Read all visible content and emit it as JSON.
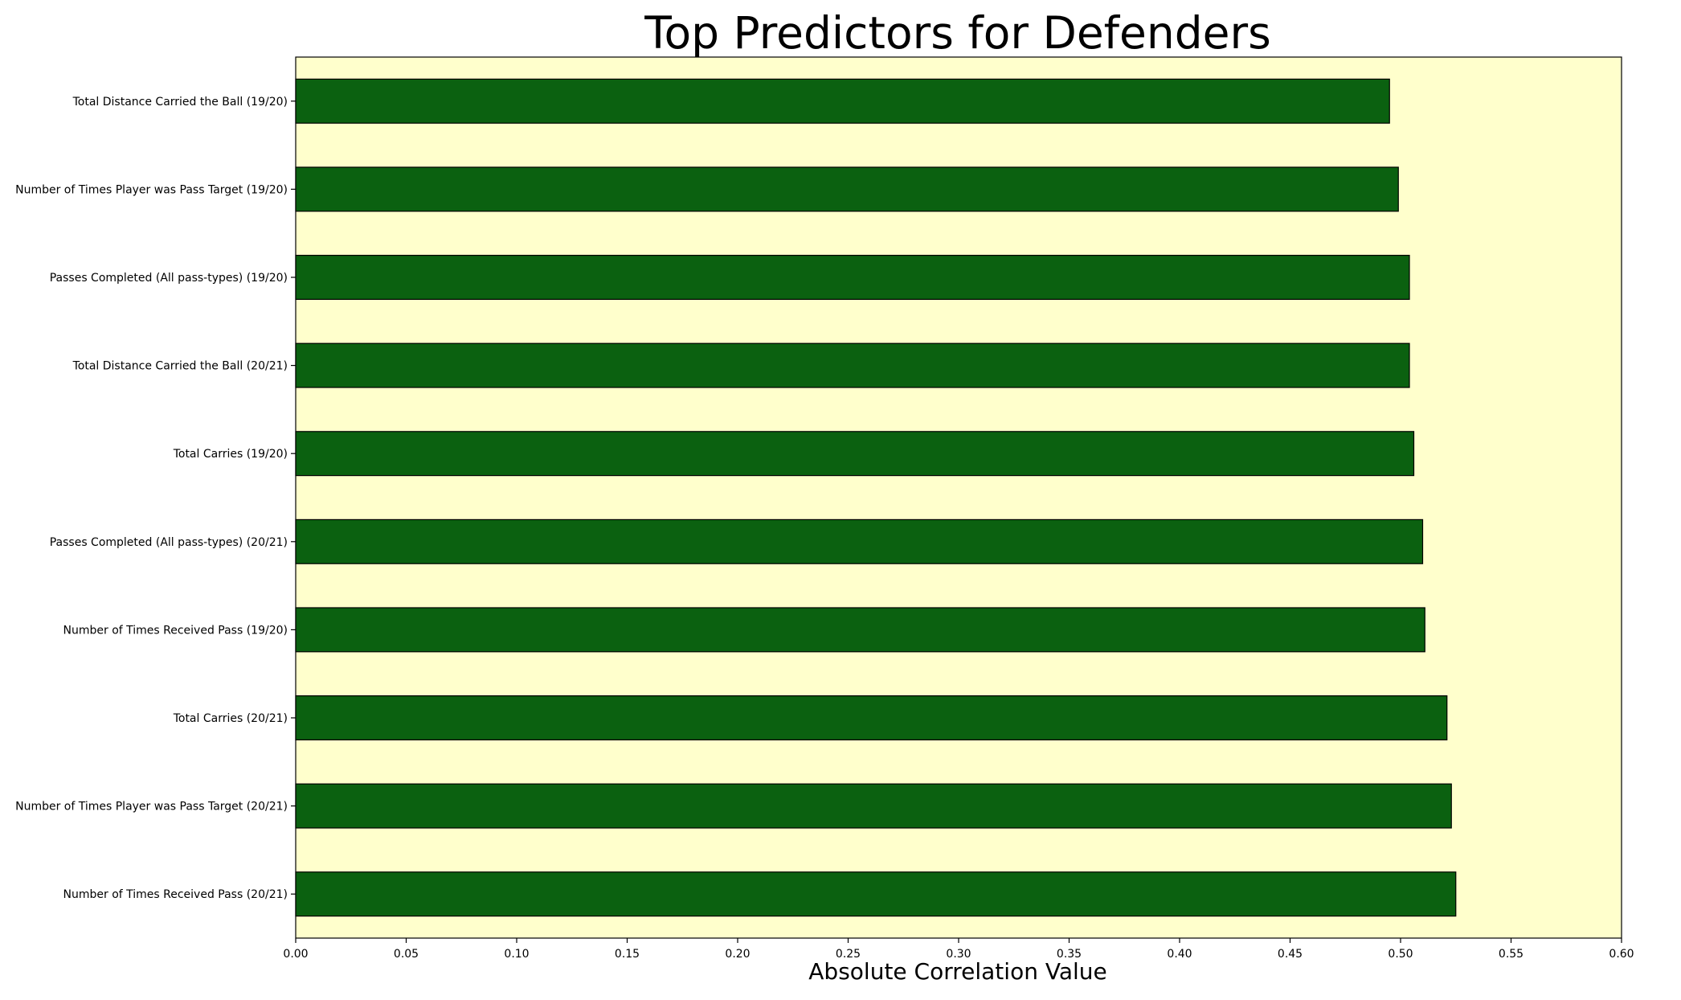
{
  "chart_data": {
    "type": "bar",
    "orientation": "horizontal",
    "title": "Top Predictors for Defenders",
    "xlabel": "Absolute Correlation Value",
    "ylabel": "",
    "xlim": [
      0,
      0.6
    ],
    "xticks": [
      "0.00",
      "0.05",
      "0.10",
      "0.15",
      "0.20",
      "0.25",
      "0.30",
      "0.35",
      "0.40",
      "0.45",
      "0.50",
      "0.55",
      "0.60"
    ],
    "categories": [
      "Total Distance Carried the Ball (19/20)",
      "Number of Times Player was Pass Target (19/20)",
      "Passes Completed (All pass-types) (19/20)",
      "Total Distance Carried the Ball (20/21)",
      "Total Carries (19/20)",
      "Passes Completed (All pass-types) (20/21)",
      "Number of Times Received Pass (19/20)",
      "Total Carries (20/21)",
      "Number of Times Player was Pass Target (20/21)",
      "Number of Times Received Pass (20/21)"
    ],
    "values": [
      0.495,
      0.499,
      0.504,
      0.504,
      0.506,
      0.51,
      0.511,
      0.521,
      0.523,
      0.525
    ],
    "grid": false,
    "legend": "none",
    "colors": {
      "bar": "#0b6110",
      "bar_edge": "#000000",
      "plot_background": "#ffffcc"
    }
  }
}
